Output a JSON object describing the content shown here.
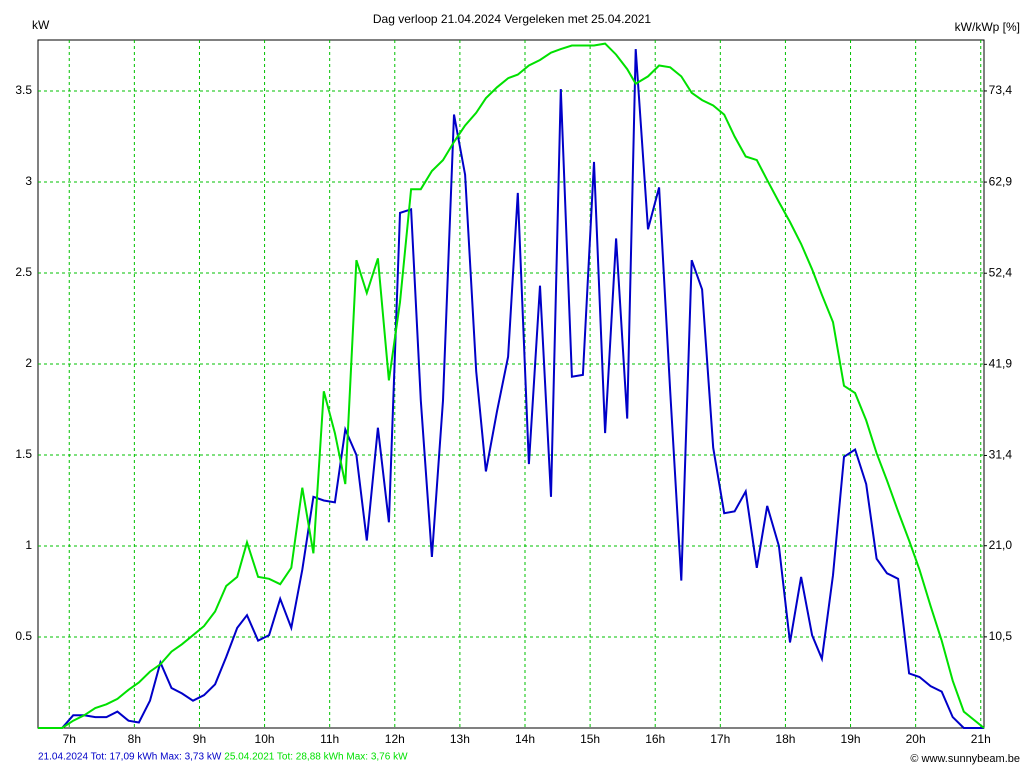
{
  "chart_data": {
    "type": "line",
    "title": "Dag  verloop 21.04.2024   Vergeleken met 25.04.2021",
    "y_label": "kW",
    "y2_label": "kW/kWp [%]",
    "credit": "© www.sunnybeam.be",
    "grid": true,
    "grid_color": "#00c000",
    "xlim": [
      6.52,
      21.05
    ],
    "xticks": [
      {
        "value": 7,
        "label": "7h"
      },
      {
        "value": 8,
        "label": "8h"
      },
      {
        "value": 9,
        "label": "9h"
      },
      {
        "value": 10,
        "label": "10h"
      },
      {
        "value": 11,
        "label": "11h"
      },
      {
        "value": 12,
        "label": "12h"
      },
      {
        "value": 13,
        "label": "13h"
      },
      {
        "value": 14,
        "label": "14h"
      },
      {
        "value": 15,
        "label": "15h"
      },
      {
        "value": 16,
        "label": "16h"
      },
      {
        "value": 17,
        "label": "17h"
      },
      {
        "value": 18,
        "label": "18h"
      },
      {
        "value": 19,
        "label": "19h"
      },
      {
        "value": 20,
        "label": "20h"
      },
      {
        "value": 21,
        "label": "21h"
      }
    ],
    "ylim": [
      0,
      3.78
    ],
    "yticks": [
      0.5,
      1,
      1.5,
      2,
      2.5,
      3,
      3.5
    ],
    "y2lim": [
      0,
      79.27
    ],
    "y2ticks": [
      {
        "value": 10.5,
        "label": "10,5"
      },
      {
        "value": 21.0,
        "label": "21,0"
      },
      {
        "value": 31.4,
        "label": "31,4"
      },
      {
        "value": 41.9,
        "label": "41,9"
      },
      {
        "value": 52.4,
        "label": "52,4"
      },
      {
        "value": 62.9,
        "label": "62,9"
      },
      {
        "value": 73.4,
        "label": "73,4"
      }
    ],
    "x": [
      6.52,
      6.89,
      7.06,
      7.23,
      7.4,
      7.57,
      7.74,
      7.91,
      8.07,
      8.24,
      8.4,
      8.57,
      8.73,
      8.9,
      9.07,
      9.24,
      9.41,
      9.58,
      9.73,
      9.9,
      10.07,
      10.24,
      10.41,
      10.58,
      10.75,
      10.91,
      11.08,
      11.24,
      11.41,
      11.57,
      11.74,
      11.91,
      12.08,
      12.25,
      12.4,
      12.57,
      12.74,
      12.91,
      13.08,
      13.25,
      13.4,
      13.57,
      13.74,
      13.89,
      14.06,
      14.23,
      14.4,
      14.55,
      14.72,
      14.89,
      15.06,
      15.23,
      15.4,
      15.57,
      15.7,
      15.89,
      16.06,
      16.23,
      16.4,
      16.56,
      16.72,
      16.89,
      17.06,
      17.22,
      17.39,
      17.56,
      17.72,
      17.9,
      18.07,
      18.24,
      18.41,
      18.56,
      18.73,
      18.9,
      19.07,
      19.24,
      19.4,
      19.56,
      19.73,
      19.9,
      20.06,
      20.23,
      20.4,
      20.57,
      20.74,
      21.05
    ],
    "series": [
      {
        "name": "21.04.2024 Tot: 17,09 kWh Max: 3,73 kW",
        "color": "#0000c8",
        "values": [
          0,
          0,
          0.07,
          0.07,
          0.06,
          0.06,
          0.09,
          0.04,
          0.03,
          0.15,
          0.36,
          0.22,
          0.19,
          0.15,
          0.18,
          0.24,
          0.39,
          0.55,
          0.62,
          0.48,
          0.51,
          0.71,
          0.55,
          0.87,
          1.27,
          1.25,
          1.24,
          1.64,
          1.5,
          1.03,
          1.65,
          1.13,
          2.83,
          2.85,
          1.8,
          0.94,
          1.8,
          3.37,
          3.04,
          1.96,
          1.41,
          1.74,
          2.04,
          2.94,
          1.45,
          2.43,
          1.27,
          3.51,
          1.93,
          1.94,
          3.11,
          1.62,
          2.69,
          1.7,
          3.73,
          2.74,
          2.97,
          1.85,
          0.81,
          2.57,
          2.41,
          1.54,
          1.18,
          1.19,
          1.3,
          0.88,
          1.22,
          1.0,
          0.47,
          0.83,
          0.51,
          0.38,
          0.84,
          1.49,
          1.53,
          1.34,
          0.93,
          0.85,
          0.82,
          0.3,
          0.28,
          0.23,
          0.2,
          0.06,
          0,
          0
        ]
      },
      {
        "name": "25.04.2021 Tot: 28,88 kWh Max: 3,76 kW",
        "color": "#00e000",
        "values": [
          0,
          0,
          0.04,
          0.07,
          0.11,
          0.13,
          0.16,
          0.21,
          0.25,
          0.31,
          0.35,
          0.42,
          0.46,
          0.51,
          0.56,
          0.64,
          0.78,
          0.83,
          1.02,
          0.83,
          0.82,
          0.79,
          0.88,
          1.32,
          0.96,
          1.85,
          1.62,
          1.34,
          2.57,
          2.39,
          2.58,
          1.91,
          2.34,
          2.96,
          2.96,
          3.06,
          3.12,
          3.22,
          3.31,
          3.38,
          3.46,
          3.52,
          3.57,
          3.59,
          3.64,
          3.67,
          3.71,
          3.73,
          3.75,
          3.75,
          3.75,
          3.76,
          3.7,
          3.62,
          3.54,
          3.58,
          3.64,
          3.63,
          3.58,
          3.49,
          3.45,
          3.42,
          3.37,
          3.25,
          3.14,
          3.12,
          3.01,
          2.89,
          2.78,
          2.66,
          2.52,
          2.38,
          2.23,
          1.88,
          1.84,
          1.69,
          1.51,
          1.36,
          1.19,
          1.03,
          0.87,
          0.67,
          0.48,
          0.26,
          0.09,
          0
        ]
      }
    ]
  }
}
